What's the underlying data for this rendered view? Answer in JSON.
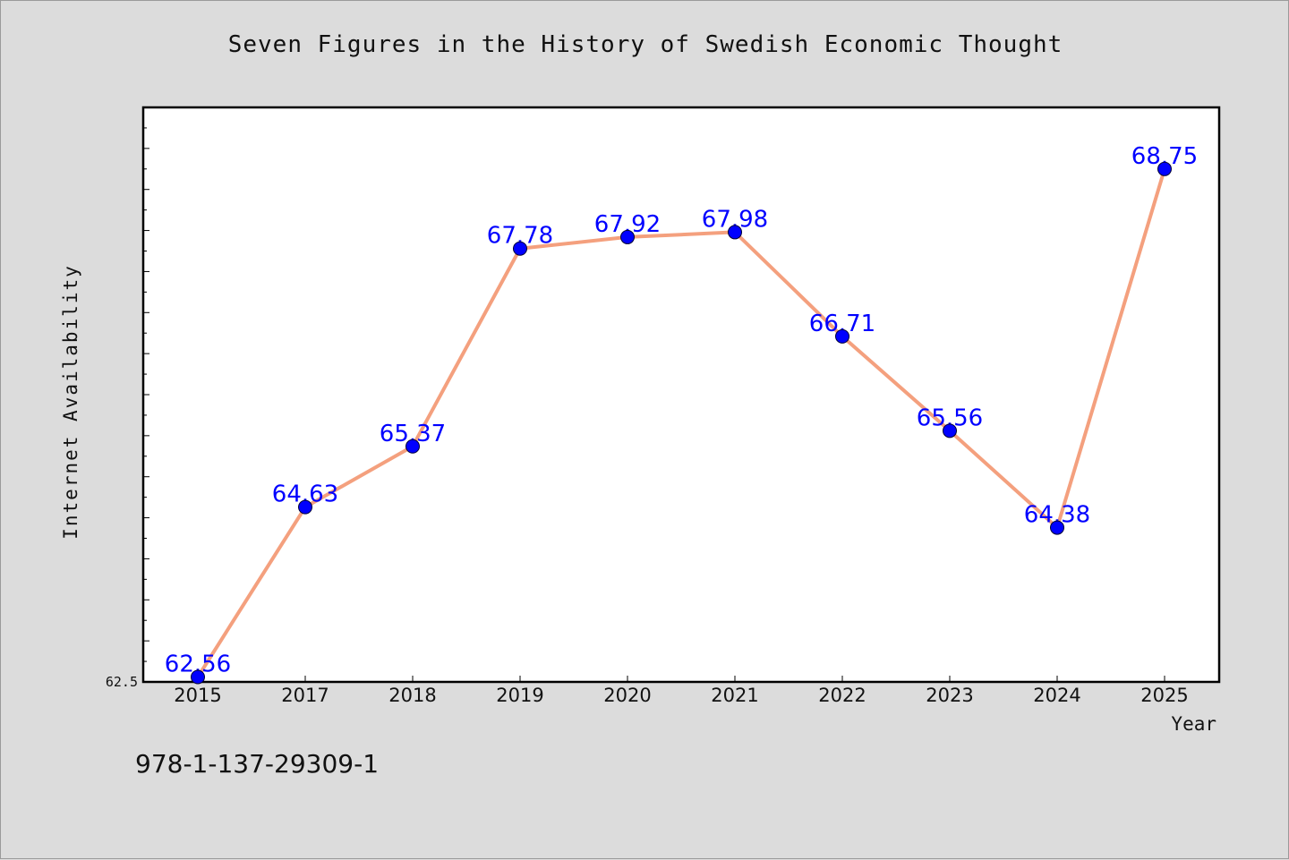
{
  "chart_data": {
    "type": "line",
    "title": "Seven Figures in the History of Swedish Economic Thought",
    "xlabel": "Year",
    "ylabel": "Internet Availability",
    "categories": [
      "2015",
      "2017",
      "2018",
      "2019",
      "2020",
      "2021",
      "2022",
      "2023",
      "2024",
      "2025"
    ],
    "series": [
      {
        "name": "",
        "values": [
          62.56,
          64.63,
          65.37,
          67.78,
          67.92,
          67.98,
          66.71,
          65.56,
          64.38,
          68.75
        ],
        "labels": [
          "62.56",
          "64.63",
          "65.37",
          "67.78",
          "67.92",
          "67.98",
          "66.71",
          "65.56",
          "64.38",
          "68.75"
        ]
      }
    ],
    "ylim": [
      62.5,
      69.5
    ],
    "y_tick_labels": [
      "62.5"
    ],
    "grid": false,
    "line_color": "#f4a07e",
    "marker_color": "#0000ff",
    "label_color": "#0000ff"
  },
  "footer": {
    "isbn": "978-1-137-29309-1"
  },
  "colors": {
    "background": "#dcdcdc",
    "plot_area": "#ffffff"
  }
}
